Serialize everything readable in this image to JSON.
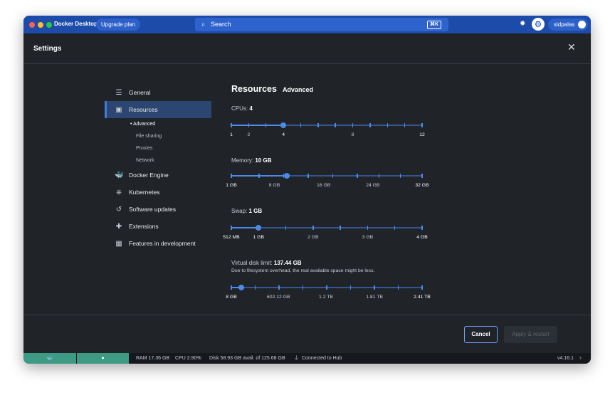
{
  "titlebar": {
    "app_name": "Docker Desktop",
    "upgrade": "Upgrade plan",
    "search_placeholder": "Search",
    "search_shortcut": "⌘K",
    "user": "sidpalas"
  },
  "header": {
    "title": "Settings"
  },
  "sidebar": {
    "items": [
      {
        "label": "General",
        "icon": "sliders-icon",
        "glyph": "☰"
      },
      {
        "label": "Resources",
        "icon": "resources-icon",
        "glyph": "▣",
        "active": true
      },
      {
        "label": "Docker Engine",
        "icon": "whale-icon",
        "glyph": "🐳"
      },
      {
        "label": "Kubernetes",
        "icon": "kubernetes-icon",
        "glyph": "⎈"
      },
      {
        "label": "Software updates",
        "icon": "history-icon",
        "glyph": "↺"
      },
      {
        "label": "Extensions",
        "icon": "puzzle-icon",
        "glyph": "✚"
      },
      {
        "label": "Features in development",
        "icon": "grid-icon",
        "glyph": "▦"
      }
    ],
    "sub_items": [
      "Advanced",
      "File sharing",
      "Proxies",
      "Network"
    ]
  },
  "main": {
    "title": "Resources",
    "subtitle": "Advanced",
    "sliders": [
      {
        "key": "cpus",
        "label": "CPUs:",
        "value_text": "4",
        "value": 4,
        "min": 1,
        "max": 12,
        "ticks": [
          1,
          2,
          3,
          4,
          5,
          6,
          7,
          8,
          9,
          10,
          11,
          12
        ],
        "tick_labels": [
          {
            "v": 1,
            "t": "1"
          },
          {
            "v": 2,
            "t": "2"
          },
          {
            "v": 4,
            "t": "4"
          },
          {
            "v": 8,
            "t": "8"
          },
          {
            "v": 12,
            "t": "12"
          }
        ]
      },
      {
        "key": "memory",
        "label": "Memory:",
        "value_text": "10 GB",
        "value": 10,
        "min": 1,
        "max": 32,
        "ticks": [
          1,
          5.5,
          9.5,
          13.5,
          17.5,
          21.5,
          25,
          28.5,
          32
        ],
        "tick_labels": [
          {
            "v": 1,
            "t": "1 GB"
          },
          {
            "v": 8,
            "t": "8 GB"
          },
          {
            "v": 16,
            "t": "16 GB"
          },
          {
            "v": 24,
            "t": "24 GB"
          },
          {
            "v": 32,
            "t": "32 GB"
          }
        ]
      },
      {
        "key": "swap",
        "label": "Swap:",
        "value_text": "1 GB",
        "value": 1,
        "min": 0.5,
        "max": 4,
        "ticks": [
          0.5,
          1,
          1.5,
          2,
          2.5,
          3,
          3.5,
          4
        ],
        "tick_labels": [
          {
            "v": 0.5,
            "t": "512 MB"
          },
          {
            "v": 1,
            "t": "1 GB"
          },
          {
            "v": 2,
            "t": "2 GB"
          },
          {
            "v": 3,
            "t": "3 GB"
          },
          {
            "v": 4,
            "t": "4 GB"
          }
        ]
      },
      {
        "key": "disk",
        "label": "Virtual disk limit:",
        "value_text": "137.44 GB",
        "note": "Due to filesystem overhead, the real available space might be less.",
        "value": 137.44,
        "min": 8,
        "max": 2410,
        "ticks": [
          8,
          308,
          608,
          908,
          1208,
          1508,
          1808,
          2108,
          2410
        ],
        "tick_labels": [
          {
            "v": 8,
            "t": "8 GB"
          },
          {
            "v": 602.12,
            "t": "602.12 GB"
          },
          {
            "v": 1200,
            "t": "1.2 TB"
          },
          {
            "v": 1810,
            "t": "1.81 TB"
          },
          {
            "v": 2410,
            "t": "2.41 TB"
          }
        ]
      }
    ]
  },
  "footer": {
    "cancel": "Cancel",
    "apply": "Apply & restart"
  },
  "status": {
    "ram": "RAM 17.36 GB",
    "cpu": "CPU 2.90%",
    "disk": "Disk 58.93 GB avail. of 125.68 GB",
    "hub": "Connected to Hub",
    "version": "v4.16.1"
  },
  "colors": {
    "accent": "#4d8ae8",
    "titlebar": "#1d4baa",
    "background": "#202429",
    "engine_status": "#3d9a85"
  }
}
